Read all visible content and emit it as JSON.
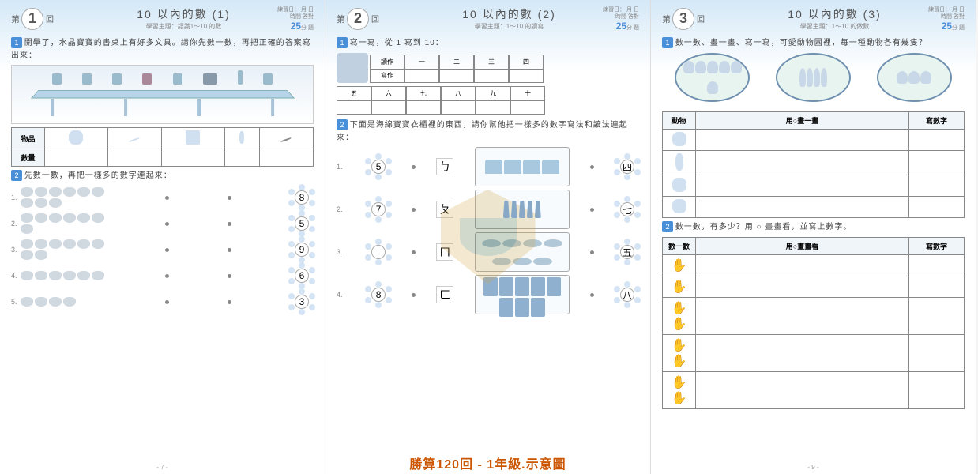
{
  "pages": [
    {
      "num": "1",
      "title": "10 以內的數 (1)",
      "subtitle": "學習主題：認識1～10 的數",
      "footer": "- 7 -"
    },
    {
      "num": "2",
      "title": "10 以內的數 (2)",
      "subtitle": "學習主題：1～10 的讀寫",
      "footer": "- 8 -"
    },
    {
      "num": "3",
      "title": "10 以內的數 (3)",
      "subtitle": "學習主題：1～10 的做數",
      "footer": "- 9 -"
    }
  ],
  "page_label_prefix": "第",
  "page_label_suffix": "回",
  "meta": {
    "line1": "練習日：  月  日",
    "line2": "時間",
    "line3": "答對",
    "time": "25",
    "time_unit": "分",
    "unit2": "題"
  },
  "p1": {
    "s1": "開學了，水晶寶寶的書桌上有好多文具。請你先數一數，再把正確的答案寫出來：",
    "row1": "物品",
    "row2": "數量",
    "s2": "先數一數，再把一樣多的數字連起來：",
    "flowers": [
      "8",
      "5",
      "9",
      "6",
      "3"
    ],
    "bug_counts": [
      9,
      7,
      8,
      6,
      4
    ]
  },
  "p2": {
    "s1": "寫一寫，從 1 寫到 10：",
    "read_label": "讀作",
    "write_label": "寫作",
    "top_cars": [
      "一",
      "二",
      "三",
      "四"
    ],
    "bottom_cars": [
      "十",
      "九",
      "八",
      "七",
      "六",
      "五"
    ],
    "s2": "下面是海綿寶寶衣櫃裡的東西，請你幫他把一樣多的數字寫法和讀法連起來：",
    "left_chars": [
      "ㄅ",
      "ㄆ",
      "ㄇ",
      "ㄈ"
    ],
    "left_flowers": [
      "5",
      "7",
      "",
      "8"
    ],
    "right_flowers": [
      "四",
      "七",
      "五",
      "八"
    ],
    "cloth_counts": [
      4,
      5,
      7,
      8
    ]
  },
  "p3": {
    "s1": "數一數、畫一畫、寫一寫，可愛動物園裡，每一種動物各有幾隻？",
    "t1h": [
      "動物",
      "用○畫一畫",
      "寫數字"
    ],
    "s2": "數一數，有多少？用 ○ 畫畫看，並寫上數字。",
    "t2h": [
      "數一數",
      "用○畫畫看",
      "寫數字"
    ],
    "hand_rows": 5
  },
  "caption": "勝算120回 - 1年級.示意圖",
  "colors": {
    "accent": "#4a90d9",
    "caption": "#cc5500"
  }
}
